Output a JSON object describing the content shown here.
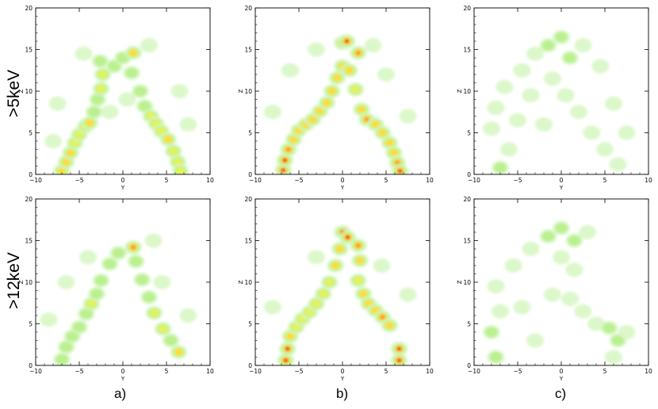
{
  "figure": {
    "row_labels": [
      ">5keV",
      ">12keV"
    ],
    "column_labels": [
      "a)",
      "b)",
      "c)"
    ]
  },
  "colors": {
    "low": "#d6f7c2",
    "light_green": "#b8f08a",
    "green_yellow": "#e6f25a",
    "yellow": "#ffd83a",
    "orange": "#ff9a1e",
    "red": "#ee1a1a",
    "magenta": "#d40c78"
  },
  "chart_data": [
    {
      "type": "heatmap",
      "row": ">5keV",
      "column": "a)",
      "xlabel": "Y",
      "ylabel": "Z",
      "xlim": [
        -10,
        10
      ],
      "ylim": [
        0,
        20
      ],
      "xticks": [
        -10,
        -5,
        0,
        5,
        10
      ],
      "yticks": [
        0,
        5,
        10,
        15,
        20
      ],
      "blobs": [
        {
          "y": -7.0,
          "z": 0.4,
          "i": 0.55
        },
        {
          "y": -6.5,
          "z": 1.5,
          "i": 0.5
        },
        {
          "y": -6.0,
          "z": 2.6,
          "i": 0.5
        },
        {
          "y": -5.5,
          "z": 3.8,
          "i": 0.45
        },
        {
          "y": -5.0,
          "z": 4.8,
          "i": 0.4
        },
        {
          "y": -4.3,
          "z": 5.8,
          "i": 0.45
        },
        {
          "y": -3.8,
          "z": 6.2,
          "i": 0.5
        },
        {
          "y": -3.3,
          "z": 7.5,
          "i": 0.35
        },
        {
          "y": -2.9,
          "z": 9.0,
          "i": 0.35
        },
        {
          "y": -2.5,
          "z": 10.3,
          "i": 0.45
        },
        {
          "y": -2.3,
          "z": 12.0,
          "i": 0.4
        },
        {
          "y": -2.6,
          "z": 13.6,
          "i": 0.35
        },
        {
          "y": -1.0,
          "z": 13.0,
          "i": 0.3
        },
        {
          "y": 0.0,
          "z": 14.0,
          "i": 0.35
        },
        {
          "y": 1.2,
          "z": 14.6,
          "i": 0.55
        },
        {
          "y": 1.0,
          "z": 12.2,
          "i": 0.3
        },
        {
          "y": 2.0,
          "z": 10.0,
          "i": 0.3
        },
        {
          "y": 2.5,
          "z": 8.2,
          "i": 0.35
        },
        {
          "y": 3.2,
          "z": 7.0,
          "i": 0.4
        },
        {
          "y": 3.8,
          "z": 6.1,
          "i": 0.4
        },
        {
          "y": 4.4,
          "z": 5.2,
          "i": 0.45
        },
        {
          "y": 5.2,
          "z": 4.2,
          "i": 0.5
        },
        {
          "y": 5.8,
          "z": 2.8,
          "i": 0.4
        },
        {
          "y": 6.3,
          "z": 1.5,
          "i": 0.45
        },
        {
          "y": 6.6,
          "z": 0.4,
          "i": 0.45
        },
        {
          "y": -8.0,
          "z": 4.0,
          "i": 0.2
        },
        {
          "y": -7.5,
          "z": 8.5,
          "i": 0.18
        },
        {
          "y": 7.5,
          "z": 6.0,
          "i": 0.2
        },
        {
          "y": 6.5,
          "z": 10.0,
          "i": 0.18
        },
        {
          "y": -4.5,
          "z": 14.5,
          "i": 0.18
        },
        {
          "y": 3.0,
          "z": 15.5,
          "i": 0.2
        },
        {
          "y": 0.5,
          "z": 9.0,
          "i": 0.15
        },
        {
          "y": -1.5,
          "z": 7.5,
          "i": 0.15
        }
      ]
    },
    {
      "type": "heatmap",
      "row": ">5keV",
      "column": "b)",
      "xlabel": "Y",
      "ylabel": "Z",
      "xlim": [
        -10,
        10
      ],
      "ylim": [
        0,
        20
      ],
      "xticks": [
        -10,
        -5,
        0,
        5,
        10
      ],
      "yticks": [
        0,
        5,
        10,
        15,
        20
      ],
      "blobs": [
        {
          "y": -6.8,
          "z": 0.5,
          "i": 1.0
        },
        {
          "y": -6.6,
          "z": 1.7,
          "i": 0.8
        },
        {
          "y": -6.2,
          "z": 3.0,
          "i": 0.65
        },
        {
          "y": -5.6,
          "z": 4.2,
          "i": 0.6
        },
        {
          "y": -5.0,
          "z": 5.3,
          "i": 0.5
        },
        {
          "y": -4.2,
          "z": 6.0,
          "i": 0.55
        },
        {
          "y": -3.4,
          "z": 6.6,
          "i": 0.5
        },
        {
          "y": -2.6,
          "z": 7.6,
          "i": 0.5
        },
        {
          "y": -1.8,
          "z": 8.6,
          "i": 0.5
        },
        {
          "y": -1.2,
          "z": 10.0,
          "i": 0.55
        },
        {
          "y": -0.6,
          "z": 11.6,
          "i": 0.55
        },
        {
          "y": 0.0,
          "z": 13.0,
          "i": 0.55
        },
        {
          "y": 0.0,
          "z": 15.8,
          "i": 1.0
        },
        {
          "y": 0.5,
          "z": 16.0,
          "i": 0.85
        },
        {
          "y": 1.8,
          "z": 14.6,
          "i": 0.75
        },
        {
          "y": 0.8,
          "z": 12.5,
          "i": 0.5
        },
        {
          "y": 1.5,
          "z": 10.2,
          "i": 0.45
        },
        {
          "y": 2.2,
          "z": 7.8,
          "i": 0.55
        },
        {
          "y": 2.8,
          "z": 6.6,
          "i": 0.7
        },
        {
          "y": 3.8,
          "z": 6.0,
          "i": 0.6
        },
        {
          "y": 4.6,
          "z": 5.0,
          "i": 0.55
        },
        {
          "y": 5.4,
          "z": 3.8,
          "i": 0.6
        },
        {
          "y": 5.9,
          "z": 2.6,
          "i": 0.6
        },
        {
          "y": 6.3,
          "z": 1.4,
          "i": 0.7
        },
        {
          "y": 6.6,
          "z": 0.4,
          "i": 0.8
        },
        {
          "y": -8.0,
          "z": 7.5,
          "i": 0.2
        },
        {
          "y": 7.5,
          "z": 7.0,
          "i": 0.2
        },
        {
          "y": -6.0,
          "z": 12.5,
          "i": 0.18
        },
        {
          "y": 5.0,
          "z": 12.0,
          "i": 0.18
        },
        {
          "y": -3.0,
          "z": 15.0,
          "i": 0.18
        },
        {
          "y": 3.5,
          "z": 15.5,
          "i": 0.2
        }
      ]
    },
    {
      "type": "heatmap",
      "row": ">5keV",
      "column": "c)",
      "xlabel": "Y",
      "ylabel": "Z",
      "xlim": [
        -10,
        10
      ],
      "ylim": [
        0,
        20
      ],
      "xticks": [
        -10,
        -5,
        0,
        5,
        10
      ],
      "yticks": [
        0,
        5,
        10,
        15,
        20
      ],
      "blobs": [
        {
          "y": -7.0,
          "z": 0.8,
          "i": 0.28
        },
        {
          "y": -6.0,
          "z": 3.0,
          "i": 0.22
        },
        {
          "y": -8.0,
          "z": 5.5,
          "i": 0.2
        },
        {
          "y": -7.5,
          "z": 8.0,
          "i": 0.2
        },
        {
          "y": -6.5,
          "z": 10.5,
          "i": 0.22
        },
        {
          "y": -4.5,
          "z": 12.5,
          "i": 0.2
        },
        {
          "y": -3.0,
          "z": 14.5,
          "i": 0.22
        },
        {
          "y": -1.5,
          "z": 15.5,
          "i": 0.25
        },
        {
          "y": 0.0,
          "z": 16.5,
          "i": 0.28
        },
        {
          "y": 1.0,
          "z": 14.0,
          "i": 0.25
        },
        {
          "y": 2.5,
          "z": 15.5,
          "i": 0.22
        },
        {
          "y": 4.5,
          "z": 13.0,
          "i": 0.2
        },
        {
          "y": -3.5,
          "z": 9.5,
          "i": 0.22
        },
        {
          "y": -2.0,
          "z": 6.0,
          "i": 0.2
        },
        {
          "y": 0.5,
          "z": 9.5,
          "i": 0.22
        },
        {
          "y": 2.0,
          "z": 7.5,
          "i": 0.22
        },
        {
          "y": 3.5,
          "z": 5.0,
          "i": 0.22
        },
        {
          "y": 5.0,
          "z": 3.0,
          "i": 0.22
        },
        {
          "y": 6.5,
          "z": 1.2,
          "i": 0.22
        },
        {
          "y": 7.5,
          "z": 5.0,
          "i": 0.2
        },
        {
          "y": 6.0,
          "z": 8.5,
          "i": 0.2
        },
        {
          "y": -5.0,
          "z": 6.5,
          "i": 0.2
        },
        {
          "y": -1.0,
          "z": 11.5,
          "i": 0.2
        }
      ]
    },
    {
      "type": "heatmap",
      "row": ">12keV",
      "column": "a)",
      "xlabel": "Y",
      "ylabel": "Z",
      "xlim": [
        -10,
        10
      ],
      "ylim": [
        0,
        20
      ],
      "xticks": [
        -10,
        -5,
        0,
        5,
        10
      ],
      "yticks": [
        0,
        5,
        10,
        15,
        20
      ],
      "blobs": [
        {
          "y": -7.0,
          "z": 0.7,
          "i": 0.35
        },
        {
          "y": -6.5,
          "z": 2.2,
          "i": 0.32
        },
        {
          "y": -5.8,
          "z": 3.5,
          "i": 0.32
        },
        {
          "y": -5.0,
          "z": 4.6,
          "i": 0.32
        },
        {
          "y": -4.2,
          "z": 6.2,
          "i": 0.35
        },
        {
          "y": -3.6,
          "z": 7.4,
          "i": 0.4
        },
        {
          "y": -3.0,
          "z": 8.6,
          "i": 0.32
        },
        {
          "y": -2.5,
          "z": 10.2,
          "i": 0.35
        },
        {
          "y": -1.5,
          "z": 12.2,
          "i": 0.3
        },
        {
          "y": -0.5,
          "z": 13.5,
          "i": 0.3
        },
        {
          "y": 1.2,
          "z": 14.2,
          "i": 0.65
        },
        {
          "y": 1.5,
          "z": 12.5,
          "i": 0.3
        },
        {
          "y": 2.2,
          "z": 10.3,
          "i": 0.3
        },
        {
          "y": 3.0,
          "z": 8.2,
          "i": 0.3
        },
        {
          "y": 3.6,
          "z": 6.3,
          "i": 0.4
        },
        {
          "y": 4.6,
          "z": 4.4,
          "i": 0.45
        },
        {
          "y": 5.5,
          "z": 3.0,
          "i": 0.3
        },
        {
          "y": 6.4,
          "z": 1.6,
          "i": 0.5
        },
        {
          "y": -8.5,
          "z": 5.5,
          "i": 0.2
        },
        {
          "y": -6.5,
          "z": 10.0,
          "i": 0.18
        },
        {
          "y": -4.0,
          "z": 13.0,
          "i": 0.18
        },
        {
          "y": 4.5,
          "z": 10.0,
          "i": 0.18
        },
        {
          "y": 7.5,
          "z": 6.0,
          "i": 0.18
        },
        {
          "y": 3.5,
          "z": 15.0,
          "i": 0.18
        }
      ]
    },
    {
      "type": "heatmap",
      "row": ">12keV",
      "column": "b)",
      "xlabel": "Y",
      "ylabel": "Z",
      "xlim": [
        -10,
        10
      ],
      "ylim": [
        0,
        20
      ],
      "xticks": [
        -10,
        -5,
        0,
        5,
        10
      ],
      "yticks": [
        0,
        5,
        10,
        15,
        20
      ],
      "blobs": [
        {
          "y": -6.5,
          "z": 0.6,
          "i": 0.8
        },
        {
          "y": -6.3,
          "z": 2.0,
          "i": 0.85
        },
        {
          "y": -6.0,
          "z": 3.5,
          "i": 0.6
        },
        {
          "y": -5.3,
          "z": 4.6,
          "i": 0.45
        },
        {
          "y": -4.6,
          "z": 5.6,
          "i": 0.4
        },
        {
          "y": -3.8,
          "z": 6.4,
          "i": 0.4
        },
        {
          "y": -3.0,
          "z": 7.4,
          "i": 0.4
        },
        {
          "y": -2.2,
          "z": 8.6,
          "i": 0.45
        },
        {
          "y": -1.5,
          "z": 10.0,
          "i": 0.45
        },
        {
          "y": -0.8,
          "z": 12.0,
          "i": 0.5
        },
        {
          "y": -0.3,
          "z": 14.0,
          "i": 0.5
        },
        {
          "y": 0.0,
          "z": 16.0,
          "i": 1.0
        },
        {
          "y": 0.6,
          "z": 15.4,
          "i": 0.85
        },
        {
          "y": 1.8,
          "z": 14.4,
          "i": 0.65
        },
        {
          "y": 2.0,
          "z": 12.6,
          "i": 0.55
        },
        {
          "y": 1.8,
          "z": 10.2,
          "i": 0.45
        },
        {
          "y": 2.4,
          "z": 8.6,
          "i": 0.5
        },
        {
          "y": 3.0,
          "z": 7.4,
          "i": 0.55
        },
        {
          "y": 3.8,
          "z": 6.6,
          "i": 0.55
        },
        {
          "y": 4.6,
          "z": 5.8,
          "i": 0.7
        },
        {
          "y": 5.4,
          "z": 4.8,
          "i": 0.5
        },
        {
          "y": 6.5,
          "z": 2.0,
          "i": 0.8
        },
        {
          "y": 6.5,
          "z": 0.6,
          "i": 0.85
        },
        {
          "y": -8.0,
          "z": 7.0,
          "i": 0.2
        },
        {
          "y": 7.5,
          "z": 8.5,
          "i": 0.18
        },
        {
          "y": -3.0,
          "z": 13.0,
          "i": 0.18
        },
        {
          "y": 4.5,
          "z": 12.0,
          "i": 0.18
        }
      ]
    },
    {
      "type": "heatmap",
      "row": ">12keV",
      "column": "c)",
      "xlabel": "Y",
      "ylabel": "Z",
      "xlim": [
        -10,
        10
      ],
      "ylim": [
        0,
        20
      ],
      "xticks": [
        -10,
        -5,
        0,
        5,
        10
      ],
      "yticks": [
        0,
        5,
        10,
        15,
        20
      ],
      "blobs": [
        {
          "y": -7.5,
          "z": 1.0,
          "i": 0.28
        },
        {
          "y": -8.0,
          "z": 4.0,
          "i": 0.28
        },
        {
          "y": -7.0,
          "z": 6.5,
          "i": 0.22
        },
        {
          "y": -7.5,
          "z": 9.5,
          "i": 0.22
        },
        {
          "y": -5.5,
          "z": 12.0,
          "i": 0.22
        },
        {
          "y": -3.5,
          "z": 14.0,
          "i": 0.22
        },
        {
          "y": -1.5,
          "z": 15.5,
          "i": 0.25
        },
        {
          "y": 0.0,
          "z": 16.5,
          "i": 0.25
        },
        {
          "y": 1.5,
          "z": 15.0,
          "i": 0.25
        },
        {
          "y": 3.0,
          "z": 16.0,
          "i": 0.22
        },
        {
          "y": 0.0,
          "z": 13.0,
          "i": 0.22
        },
        {
          "y": 1.5,
          "z": 11.5,
          "i": 0.22
        },
        {
          "y": -1.0,
          "z": 8.5,
          "i": 0.22
        },
        {
          "y": 1.0,
          "z": 8.0,
          "i": 0.22
        },
        {
          "y": 2.5,
          "z": 6.5,
          "i": 0.22
        },
        {
          "y": 4.0,
          "z": 5.0,
          "i": 0.2
        },
        {
          "y": 5.5,
          "z": 4.5,
          "i": 0.25
        },
        {
          "y": 6.5,
          "z": 3.0,
          "i": 0.28
        },
        {
          "y": 7.5,
          "z": 4.0,
          "i": 0.22
        },
        {
          "y": 6.0,
          "z": 1.0,
          "i": 0.2
        },
        {
          "y": -4.5,
          "z": 7.0,
          "i": 0.2
        },
        {
          "y": -3.0,
          "z": 3.0,
          "i": 0.2
        }
      ]
    }
  ]
}
